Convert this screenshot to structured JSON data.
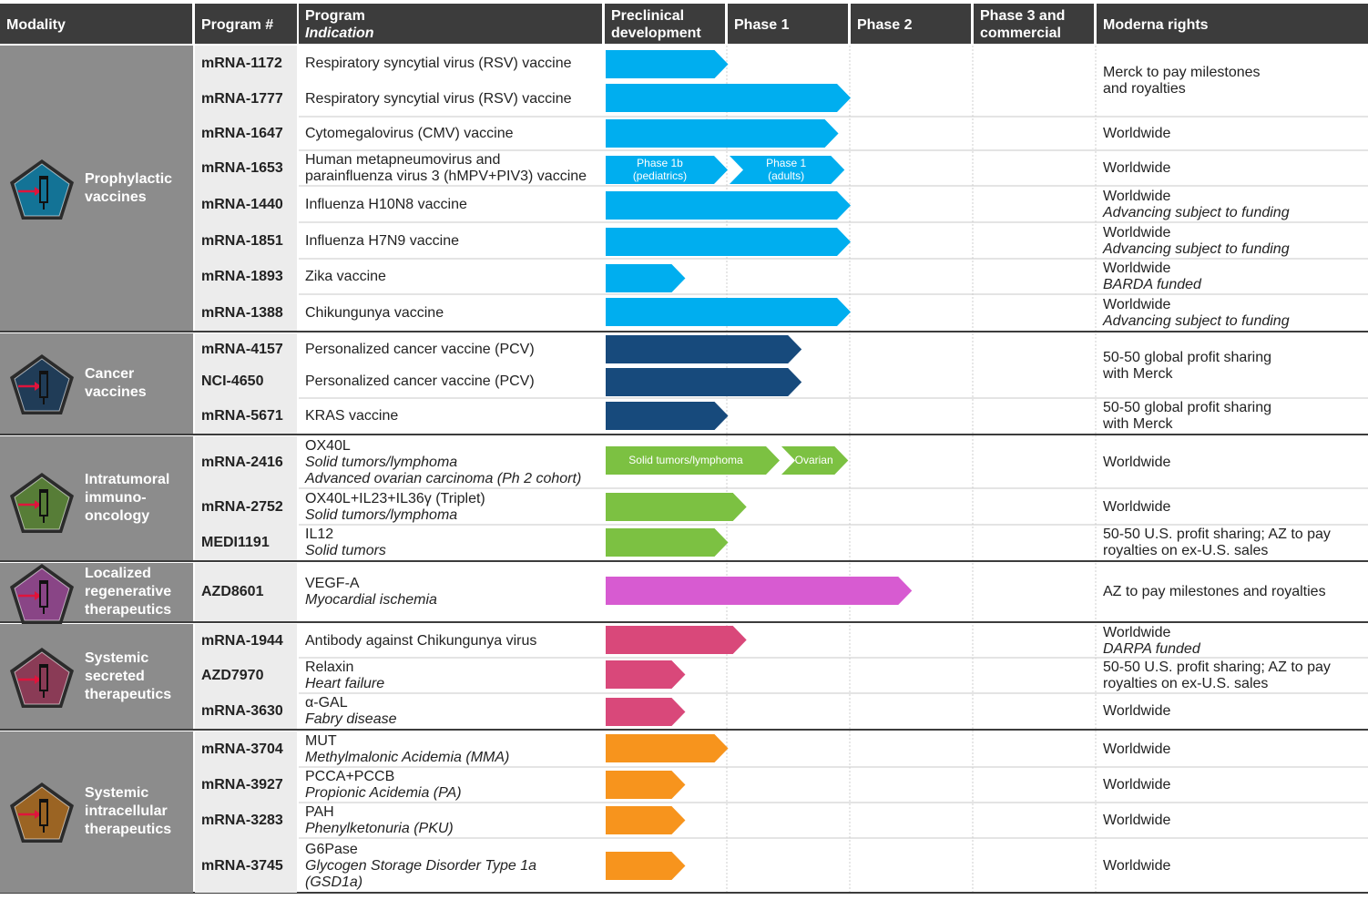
{
  "headers": {
    "modality": "Modality",
    "program": "Program #",
    "indication_1": "Program",
    "indication_2": "Indication",
    "preclinical": "Preclinical development",
    "phase1": "Phase 1",
    "phase2": "Phase 2",
    "phase3": "Phase 3 and commercial",
    "rights": "Moderna rights"
  },
  "colors": {
    "header_bg": "#3c3c3c",
    "modality_bg": "#8c8c8c",
    "program_bg": "#ececec",
    "prophylactic": "#00aeef",
    "cancer": "#174a7c",
    "intratumoral": "#7cc142",
    "regenerative": "#d75bd1",
    "secreted": "#d9487a",
    "intracellular": "#f7941d"
  },
  "modalities": [
    {
      "name": "Prophylactic vaccines",
      "lines": [
        "Prophylactic",
        "vaccines"
      ],
      "icon": "syringe-icon",
      "color_key": "prophylactic"
    },
    {
      "name": "Cancer vaccines",
      "lines": [
        "Cancer",
        "vaccines"
      ],
      "icon": "multi-syringe-icon",
      "color_key": "cancer"
    },
    {
      "name": "Intratumoral immuno-oncology",
      "lines": [
        "Intratumoral",
        "immuno-",
        "oncology"
      ],
      "icon": "tumor-cell-icon",
      "color_key": "intratumoral"
    },
    {
      "name": "Localized regenerative therapeutics",
      "lines": [
        "Localized",
        "regenerative",
        "therapeutics"
      ],
      "icon": "heart-tissue-icon",
      "color_key": "regenerative"
    },
    {
      "name": "Systemic secreted therapeutics",
      "lines": [
        "Systemic",
        "secreted",
        "therapeutics"
      ],
      "icon": "human-figure-icon",
      "color_key": "secreted"
    },
    {
      "name": "Systemic intracellular therapeutics",
      "lines": [
        "Systemic",
        "intracellular",
        "therapeutics"
      ],
      "icon": "cell-icon",
      "color_key": "intracellular"
    }
  ],
  "programs": [
    {
      "id": "mRNA-1172",
      "indication": [
        "Respiratory syncytial virus (RSV) vaccine"
      ],
      "phase": 1.0
    },
    {
      "id": "mRNA-1777",
      "indication": [
        "Respiratory syncytial virus (RSV) vaccine"
      ],
      "phase": 2.0
    },
    {
      "id": "mRNA-1647",
      "indication": [
        "Cytomegalovirus (CMV) vaccine"
      ],
      "phase": 1.9
    },
    {
      "id": "mRNA-1653",
      "indication": [
        "Human metapneumovirus and",
        "parainfluenza virus 3 (hMPV+PIV3) vaccine"
      ],
      "phase": 1.95,
      "segments": [
        {
          "label": [
            "Phase 1b",
            "(pediatrics)"
          ]
        },
        {
          "label": [
            "Phase 1",
            "(adults)"
          ]
        }
      ]
    },
    {
      "id": "mRNA-1440",
      "indication": [
        "Influenza H10N8 vaccine"
      ],
      "phase": 2.0
    },
    {
      "id": "mRNA-1851",
      "indication": [
        "Influenza H7N9 vaccine"
      ],
      "phase": 2.0
    },
    {
      "id": "mRNA-1893",
      "indication": [
        "Zika vaccine"
      ],
      "phase": 0.65
    },
    {
      "id": "mRNA-1388",
      "indication": [
        "Chikungunya vaccine"
      ],
      "phase": 2.0
    },
    {
      "id": "mRNA-4157",
      "indication": [
        "Personalized cancer vaccine (PCV)"
      ],
      "phase": 1.6
    },
    {
      "id": "NCI-4650",
      "indication": [
        "Personalized cancer vaccine (PCV)"
      ],
      "phase": 1.6
    },
    {
      "id": "mRNA-5671",
      "indication": [
        "KRAS vaccine"
      ],
      "phase": 1.0
    },
    {
      "id": "mRNA-2416",
      "indication": [
        "OX40L",
        "Solid tumors/lymphoma",
        "Advanced ovarian carcinoma (Ph 2 cohort)"
      ],
      "phase": 1.98,
      "segments": [
        {
          "label": [
            "Solid tumors/lymphoma"
          ]
        },
        {
          "label": [
            "Ovarian"
          ]
        }
      ]
    },
    {
      "id": "mRNA-2752",
      "indication": [
        "OX40L+IL23+IL36γ (Triplet)",
        "Solid tumors/lymphoma"
      ],
      "phase": 1.15
    },
    {
      "id": "MEDI1191",
      "indication": [
        "IL12",
        "Solid tumors"
      ],
      "phase": 1.0
    },
    {
      "id": "AZD8601",
      "indication": [
        "VEGF-A",
        "Myocardial ischemia"
      ],
      "phase": 2.5
    },
    {
      "id": "mRNA-1944",
      "indication": [
        "Antibody against Chikungunya virus"
      ],
      "phase": 1.15
    },
    {
      "id": "AZD7970",
      "indication": [
        "Relaxin",
        "Heart failure"
      ],
      "phase": 0.65
    },
    {
      "id": "mRNA-3630",
      "indication": [
        "α-GAL",
        "Fabry disease"
      ],
      "phase": 0.65
    },
    {
      "id": "mRNA-3704",
      "indication": [
        "MUT",
        "Methylmalonic Acidemia (MMA)"
      ],
      "phase": 1.0
    },
    {
      "id": "mRNA-3927",
      "indication": [
        "PCCA+PCCB",
        "Propionic Acidemia (PA)"
      ],
      "phase": 0.65
    },
    {
      "id": "mRNA-3283",
      "indication": [
        "PAH",
        "Phenylketonuria (PKU)"
      ],
      "phase": 0.65
    },
    {
      "id": "mRNA-3745",
      "indication": [
        "G6Pase",
        "Glycogen Storage Disorder Type 1a",
        "(GSD1a)"
      ],
      "phase": 0.65
    }
  ],
  "rights": [
    [
      "Merck to pay milestones",
      "and royalties"
    ],
    [
      "Worldwide"
    ],
    [
      "Worldwide"
    ],
    [
      "Worldwide",
      "Advancing subject to funding"
    ],
    [
      "Worldwide",
      "Advancing subject to funding"
    ],
    [
      "Worldwide",
      "BARDA funded"
    ],
    [
      "Worldwide",
      "Advancing subject to funding"
    ],
    [
      "50-50 global profit sharing",
      "with Merck"
    ],
    [
      "50-50 global profit sharing",
      "with Merck"
    ],
    [
      "Worldwide"
    ],
    [
      "Worldwide"
    ],
    [
      "50-50 U.S. profit sharing; AZ to pay",
      "royalties on ex-U.S. sales"
    ],
    [
      "AZ to pay milestones and royalties"
    ],
    [
      "Worldwide",
      "DARPA funded"
    ],
    [
      "50-50 U.S. profit sharing; AZ to pay",
      "royalties on ex-U.S. sales"
    ],
    [
      "Worldwide"
    ],
    [
      "Worldwide"
    ],
    [
      "Worldwide"
    ],
    [
      "Worldwide"
    ],
    [
      "Worldwide"
    ]
  ]
}
